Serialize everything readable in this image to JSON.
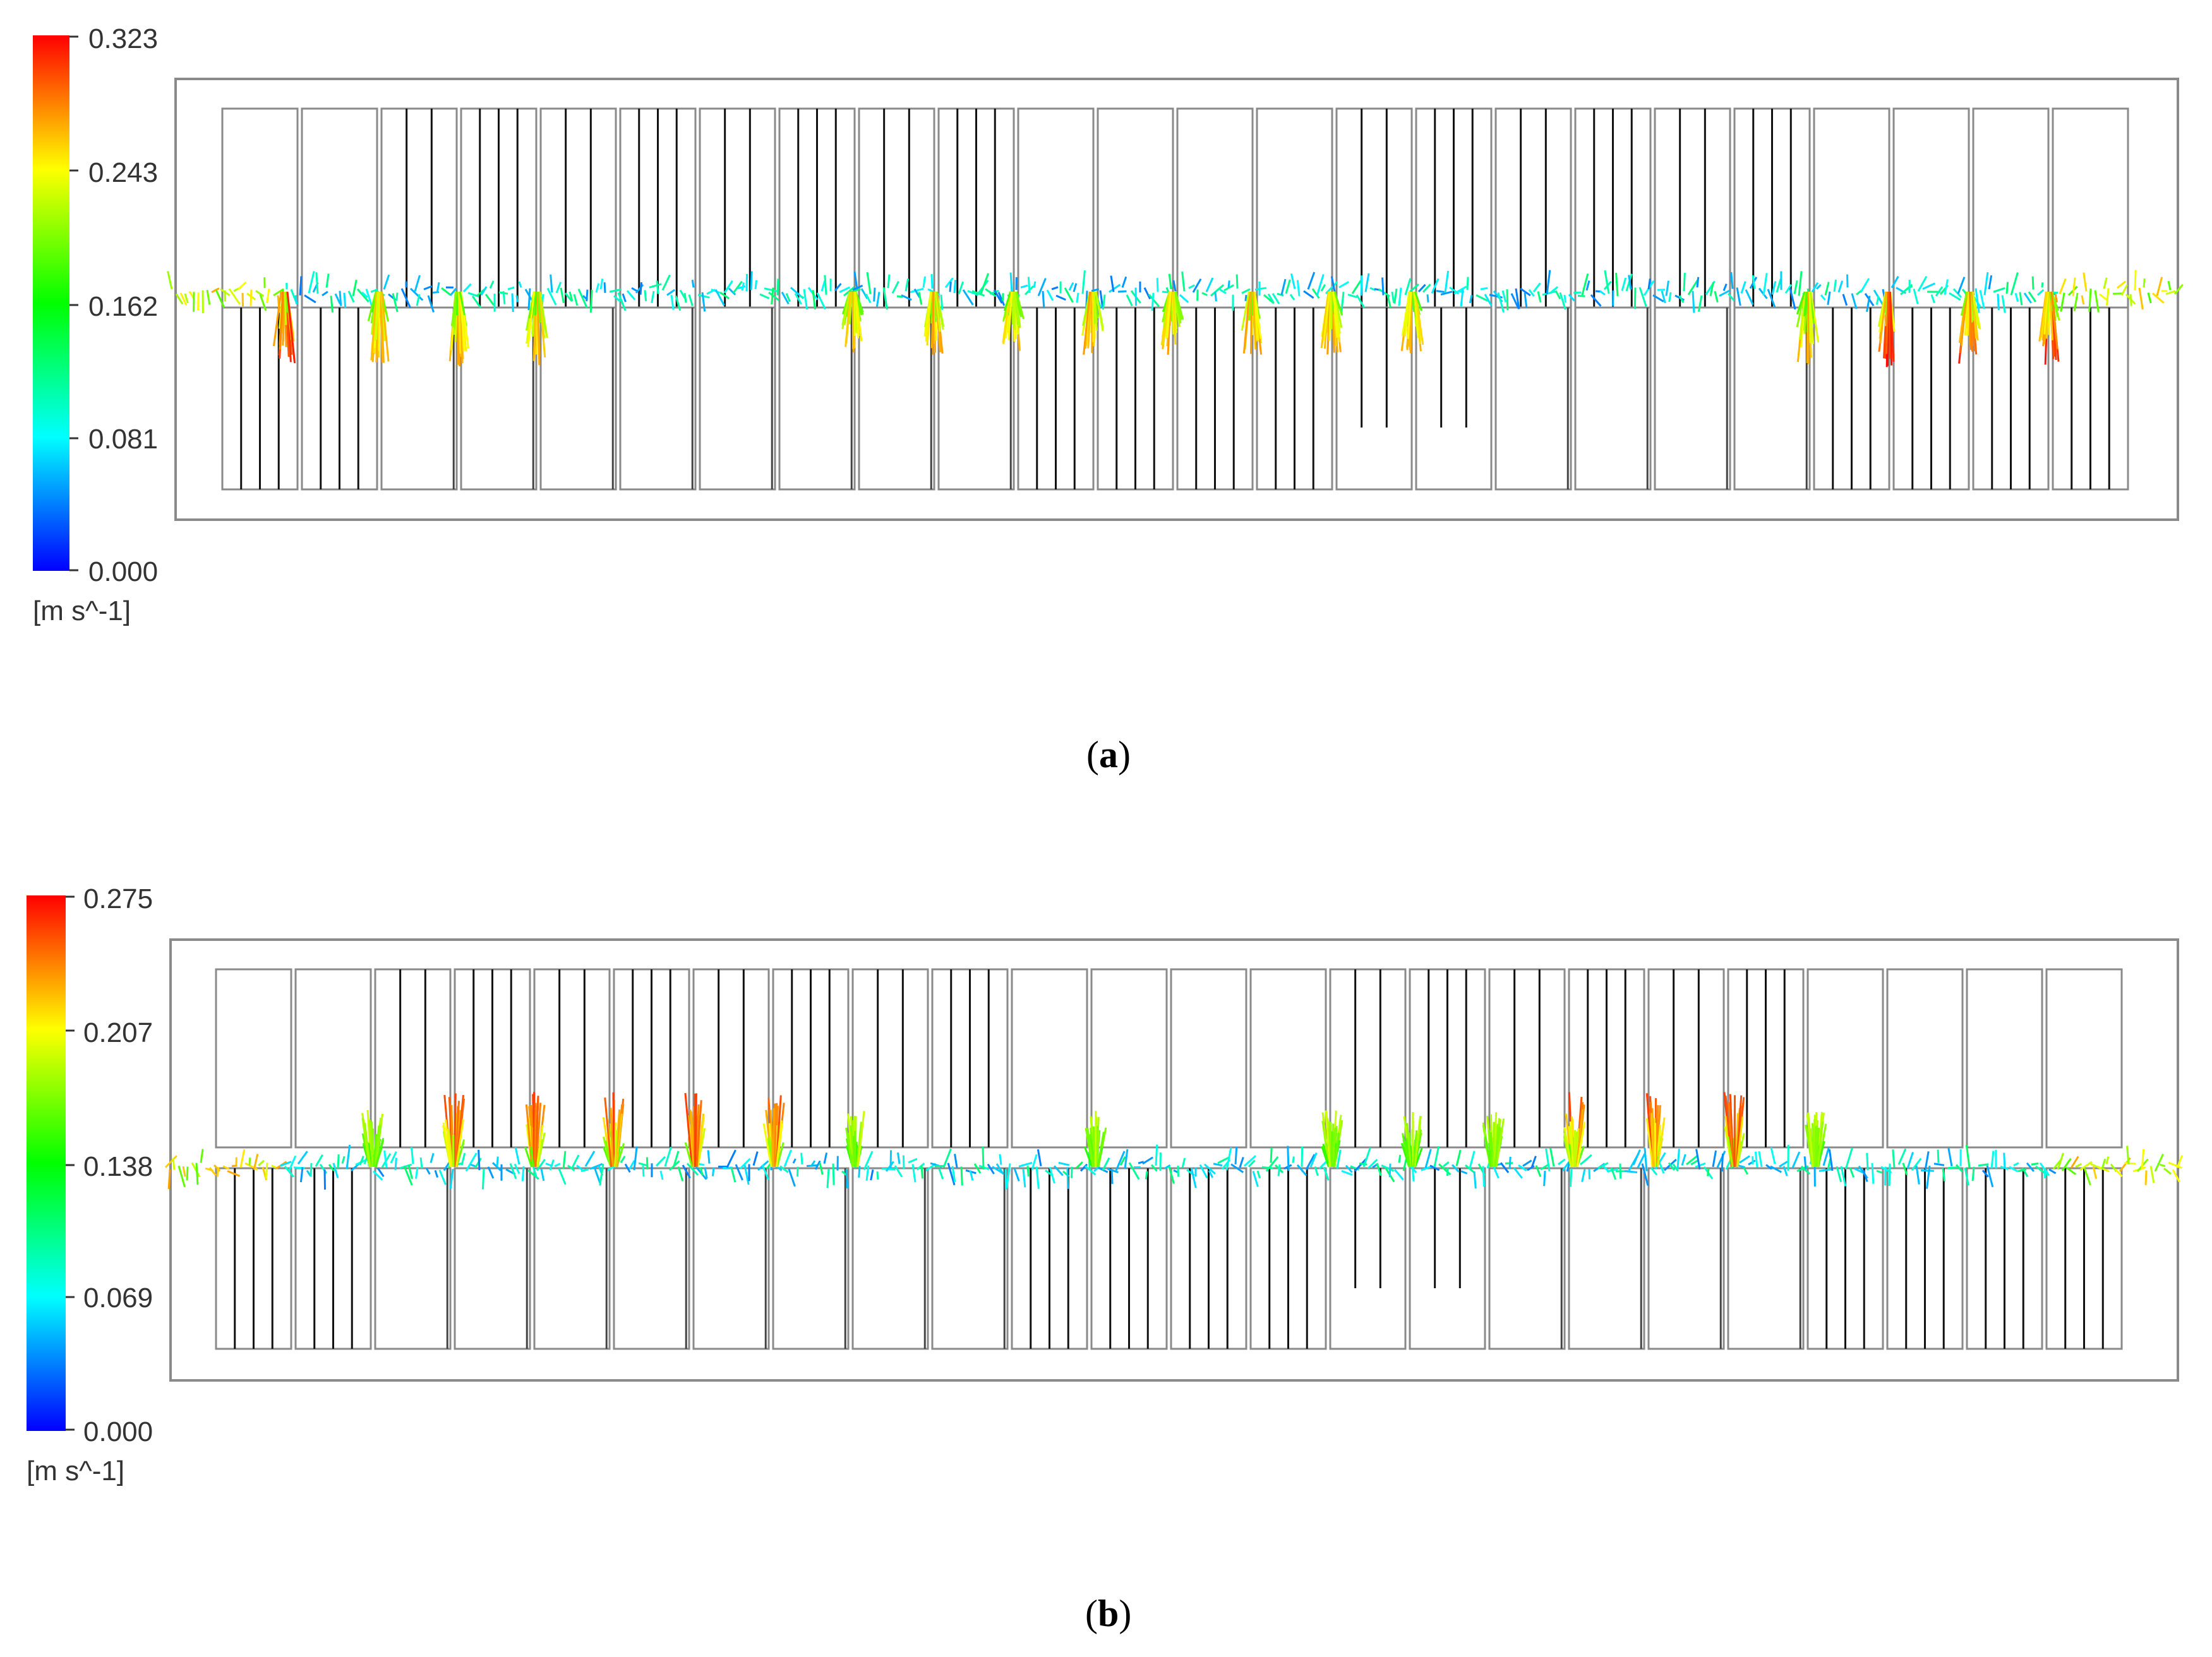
{
  "panels": [
    {
      "id": "a",
      "caption_letter": "a",
      "caption_open": "(",
      "caption_close": ")",
      "colorbar_ticks": [
        "0.323",
        "0.243",
        "0.162",
        "0.081",
        "0.000"
      ],
      "unit": "[m s^-1]",
      "vector_layer": "horizontal"
    },
    {
      "id": "b",
      "caption_letter": "b",
      "caption_open": "(",
      "caption_close": ")",
      "colorbar_ticks": [
        "0.275",
        "0.207",
        "0.138",
        "0.069",
        "0.000"
      ],
      "unit": "[m s^-1]",
      "vector_layer": "horizontal"
    }
  ],
  "colors": {
    "colormap": [
      "#0000ff",
      "#00ffff",
      "#00ff00",
      "#ffff00",
      "#ff0000"
    ],
    "outline": "#8a8a8a",
    "divider": "#111111"
  }
}
